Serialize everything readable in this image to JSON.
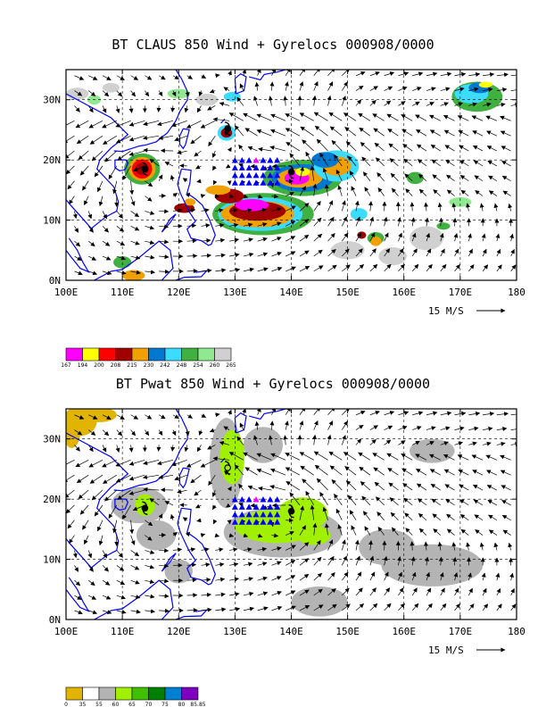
{
  "panels": [
    {
      "title": "BT CLAUS 850 Wind + Gyrelocs 000908/0000",
      "field": "claus",
      "colorbar": {
        "colors": [
          "#ff00ff",
          "#ffff00",
          "#ff0000",
          "#a00000",
          "#f0a000",
          "#0078d0",
          "#3cdcff",
          "#40b040",
          "#90e890",
          "#d0d0d0"
        ],
        "labels": [
          "167",
          "194",
          "200",
          "208",
          "215",
          "230",
          "242",
          "248",
          "254",
          "260",
          "265"
        ]
      }
    },
    {
      "title": "BT Pwat 850 Wind + Gyrelocs 000908/0000",
      "field": "pwat",
      "colorbar": {
        "colors": [
          "#e0b400",
          "#ffffff",
          "#b4b4b4",
          "#a0f000",
          "#40c000",
          "#008000",
          "#0080d0",
          "#8000c0"
        ],
        "labels": [
          "0",
          "35",
          "55",
          "60",
          "65",
          "70",
          "75",
          "80",
          "85.85"
        ]
      }
    }
  ],
  "x_ticks": [
    "100E",
    "110E",
    "120E",
    "130E",
    "140E",
    "150E",
    "160E",
    "170E",
    "180"
  ],
  "y_ticks": [
    "0N",
    "10N",
    "20N",
    "30N"
  ],
  "wind_scale_label": "15 M/S",
  "lon_range": [
    100,
    180
  ],
  "lat_range": [
    0,
    35
  ],
  "vector_grid_spacing_deg": 2.5,
  "cyclones": [
    {
      "lon": 114,
      "lat": 18.5
    },
    {
      "lon": 128.7,
      "lat": 25.2
    },
    {
      "lon": 140,
      "lat": 18
    }
  ],
  "gyre_markers": {
    "lon_start": 130,
    "lat_start": 16.2,
    "step": 1.25,
    "cols": 7,
    "rows": 4,
    "highlight": {
      "lon": 133.75,
      "lat": 19.95
    }
  }
}
